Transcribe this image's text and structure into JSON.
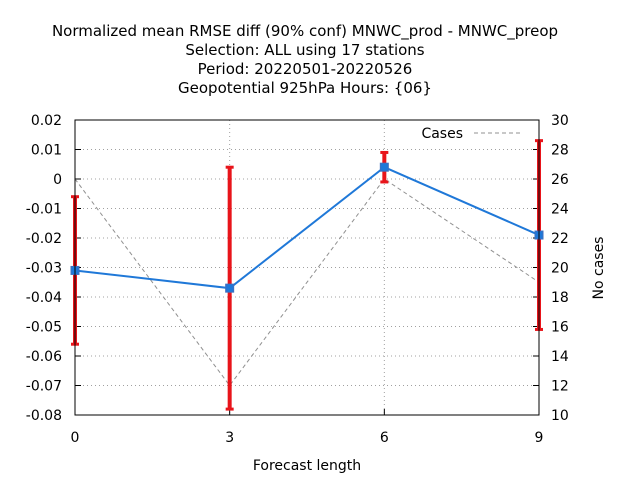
{
  "chart_data": {
    "type": "line",
    "title_lines": [
      "Normalized mean RMSE diff (90% conf) MNWC_prod - MNWC_preop",
      "Selection: ALL using    17 stations",
      "Period: 20220501-20220526",
      "Geopotential 925hPa   Hours: {06}"
    ],
    "xlabel": "Forecast length",
    "ylabel": "",
    "y2label": "No cases",
    "x": [
      0,
      3,
      6,
      9
    ],
    "xlim": [
      0,
      9
    ],
    "ylim": [
      -0.08,
      0.02
    ],
    "y2lim": [
      10,
      30
    ],
    "x_ticks": [
      "0",
      "3",
      "6",
      "9"
    ],
    "y_ticks": [
      "0.02",
      "0.01",
      "0",
      "-0.01",
      "-0.02",
      "-0.03",
      "-0.04",
      "-0.05",
      "-0.06",
      "-0.07",
      "-0.08"
    ],
    "y2_ticks": [
      "30",
      "28",
      "26",
      "24",
      "22",
      "20",
      "18",
      "16",
      "14",
      "12",
      "10"
    ],
    "grid": true,
    "legend_position": "top-right",
    "series": [
      {
        "axis": "y",
        "color": "#1f78d8",
        "values": [
          -0.031,
          -0.037,
          0.004,
          -0.019
        ],
        "err_low": [
          -0.056,
          -0.078,
          -0.001,
          -0.051
        ],
        "err_high": [
          -0.006,
          0.004,
          0.009,
          0.013
        ],
        "err_color": "#e8141a"
      },
      {
        "name": "Cases",
        "axis": "y2",
        "color": "#909090",
        "style": "dashed",
        "values": [
          26,
          12,
          26,
          19
        ]
      }
    ]
  }
}
